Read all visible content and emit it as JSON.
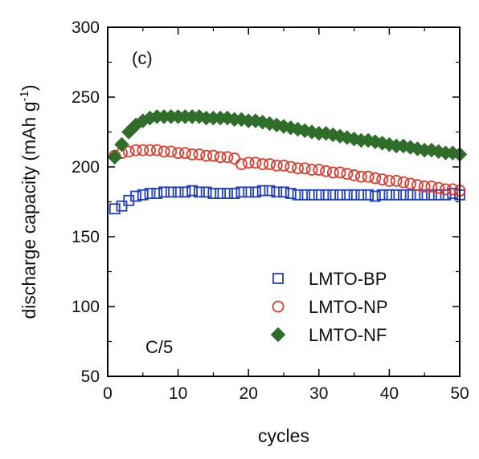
{
  "chart_data": {
    "type": "scatter",
    "panel_label": "(c)",
    "annotation": "C/5",
    "xlabel": "cycles",
    "ylabel": "discharge capacity (mAh g",
    "ylabel_sup": "-1",
    "ylabel_close": ")",
    "xlim": [
      0,
      50
    ],
    "ylim": [
      50,
      300
    ],
    "xticks": [
      0,
      10,
      20,
      30,
      40,
      50
    ],
    "yticks": [
      50,
      100,
      150,
      200,
      250,
      300
    ],
    "grid": false,
    "legend_position": "bottom-right",
    "x": [
      1,
      2,
      3,
      4,
      5,
      6,
      7,
      8,
      9,
      10,
      11,
      12,
      13,
      14,
      15,
      16,
      17,
      18,
      19,
      20,
      21,
      22,
      23,
      24,
      25,
      26,
      27,
      28,
      29,
      30,
      31,
      32,
      33,
      34,
      35,
      36,
      37,
      38,
      39,
      40,
      41,
      42,
      43,
      44,
      45,
      46,
      47,
      48,
      49,
      50
    ],
    "series": [
      {
        "name": "LMTO-BP",
        "marker": "square-open",
        "color": "#1f3fbf",
        "values": [
          170,
          172,
          176,
          179,
          180,
          181,
          181,
          182,
          182,
          182,
          182,
          183,
          182,
          182,
          181,
          181,
          181,
          181,
          182,
          182,
          182,
          183,
          183,
          182,
          182,
          181,
          180,
          180,
          180,
          180,
          180,
          180,
          180,
          180,
          180,
          180,
          180,
          179,
          180,
          180,
          180,
          180,
          180,
          180,
          180,
          180,
          180,
          180,
          181,
          180
        ]
      },
      {
        "name": "LMTO-NP",
        "marker": "circle-open",
        "color": "#e03a2a",
        "values": [
          208,
          210,
          211,
          212,
          212,
          212,
          212,
          211,
          211,
          210,
          210,
          209,
          209,
          208,
          208,
          207,
          207,
          206,
          202,
          203,
          203,
          202,
          202,
          201,
          201,
          200,
          199,
          199,
          198,
          198,
          197,
          196,
          196,
          195,
          194,
          193,
          193,
          192,
          191,
          190,
          190,
          189,
          188,
          187,
          186,
          186,
          185,
          184,
          184,
          183
        ]
      },
      {
        "name": "LMTO-NF",
        "marker": "diamond-filled",
        "color": "#2e6e2a",
        "values": [
          207,
          216,
          225,
          230,
          233,
          235,
          236,
          236,
          236,
          236,
          236,
          236,
          236,
          235,
          235,
          235,
          235,
          234,
          234,
          233,
          233,
          232,
          231,
          230,
          229,
          228,
          227,
          226,
          225,
          224,
          224,
          223,
          222,
          221,
          220,
          219,
          219,
          218,
          217,
          216,
          215,
          215,
          214,
          213,
          212,
          212,
          211,
          210,
          210,
          209
        ]
      }
    ]
  }
}
